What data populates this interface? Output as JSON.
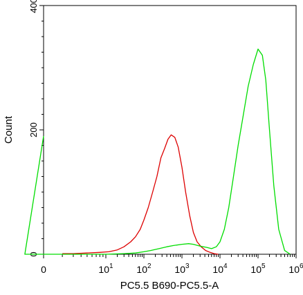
{
  "chart_data": {
    "type": "line",
    "title": "",
    "xlabel": "PC5.5 B690-PC5.5-A",
    "ylabel": "Count",
    "xscale": "log",
    "xlim": [
      0,
      1000000
    ],
    "ylim": [
      0,
      400
    ],
    "y_ticks": [
      {
        "v": 0,
        "label": "0"
      },
      {
        "v": 200,
        "label": "200"
      },
      {
        "v": 400,
        "label": "400"
      }
    ],
    "x_ticks": [
      {
        "v": 0,
        "base": "0",
        "exp": ""
      },
      {
        "v": 10,
        "base": "10",
        "exp": "1"
      },
      {
        "v": 100,
        "base": "10",
        "exp": "2"
      },
      {
        "v": 1000,
        "base": "10",
        "exp": "3"
      },
      {
        "v": 10000,
        "base": "10",
        "exp": "4"
      },
      {
        "v": 100000,
        "base": "10",
        "exp": "5"
      },
      {
        "v": 1000000,
        "base": "10",
        "exp": "6"
      }
    ],
    "grid": false,
    "legend": "none",
    "series": [
      {
        "color": "#dd0000",
        "x": [
          2,
          3,
          5,
          8,
          12,
          20,
          30,
          45,
          60,
          80,
          100,
          130,
          170,
          220,
          280,
          350,
          430,
          520,
          650,
          800,
          1000,
          1250,
          1600,
          2000,
          2500,
          3200,
          4200,
          5500,
          7000,
          9000
        ],
        "y": [
          1,
          1,
          2,
          3,
          4,
          7,
          12,
          20,
          28,
          40,
          55,
          75,
          100,
          125,
          155,
          170,
          185,
          192,
          188,
          172,
          140,
          100,
          62,
          35,
          20,
          12,
          6,
          3,
          1,
          0
        ]
      },
      {
        "color": "#00dd00",
        "x": [
          0,
          0.5,
          10,
          30,
          60,
          100,
          150,
          250,
          400,
          600,
          1000,
          1500,
          2000,
          3000,
          4500,
          6000,
          8000,
          10000,
          13000,
          17000,
          22000,
          30000,
          40000,
          55000,
          75000,
          100000,
          130000,
          160000,
          200000,
          260000,
          350000,
          500000,
          700000
        ],
        "y": [
          190,
          0,
          0,
          1,
          2,
          4,
          6,
          9,
          12,
          14,
          16,
          17,
          16,
          13,
          11,
          9,
          12,
          20,
          40,
          75,
          120,
          175,
          220,
          270,
          305,
          330,
          320,
          280,
          200,
          110,
          40,
          6,
          0
        ]
      }
    ]
  }
}
